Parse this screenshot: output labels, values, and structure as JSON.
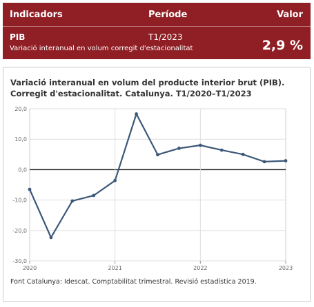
{
  "header": {
    "col_indicator": "Indicadors",
    "col_period": "Període",
    "col_value": "Valor"
  },
  "indicator": {
    "name": "PIB",
    "description": "Variació interanual en volum corregit d'estacionalitat",
    "period": "T1/2023",
    "value": "2,9 %"
  },
  "colors": {
    "header_bg": "#8f1f25",
    "line": "#3b5878",
    "zero_line": "#222222"
  },
  "chart_data": {
    "type": "line",
    "title": "Variació interanual en volum del producte interior brut (PIB). Corregit d'estacionalitat. Catalunya. T1/2020–T1/2023",
    "x_tick_labels": [
      "2020",
      "2021",
      "2022",
      "2023"
    ],
    "y_tick_labels": [
      "20,0",
      "10,0",
      "0,0",
      "-10,0",
      "-20,0",
      "-30,0"
    ],
    "y_ticks": [
      20,
      10,
      0,
      -10,
      -20,
      -30
    ],
    "ylim": [
      -30,
      20
    ],
    "grid": true,
    "categories": [
      "T1/2020",
      "T2/2020",
      "T3/2020",
      "T4/2020",
      "T1/2021",
      "T2/2021",
      "T3/2021",
      "T4/2021",
      "T1/2022",
      "T2/2022",
      "T3/2022",
      "T4/2022",
      "T1/2023"
    ],
    "values": [
      -6.5,
      -22.3,
      -10.3,
      -8.5,
      -3.6,
      18.3,
      4.9,
      7.0,
      8.0,
      6.4,
      5.0,
      2.6,
      2.9
    ]
  },
  "source": "Font Catalunya: Idescat. Comptabilitat trimestral. Revisió estadística 2019."
}
